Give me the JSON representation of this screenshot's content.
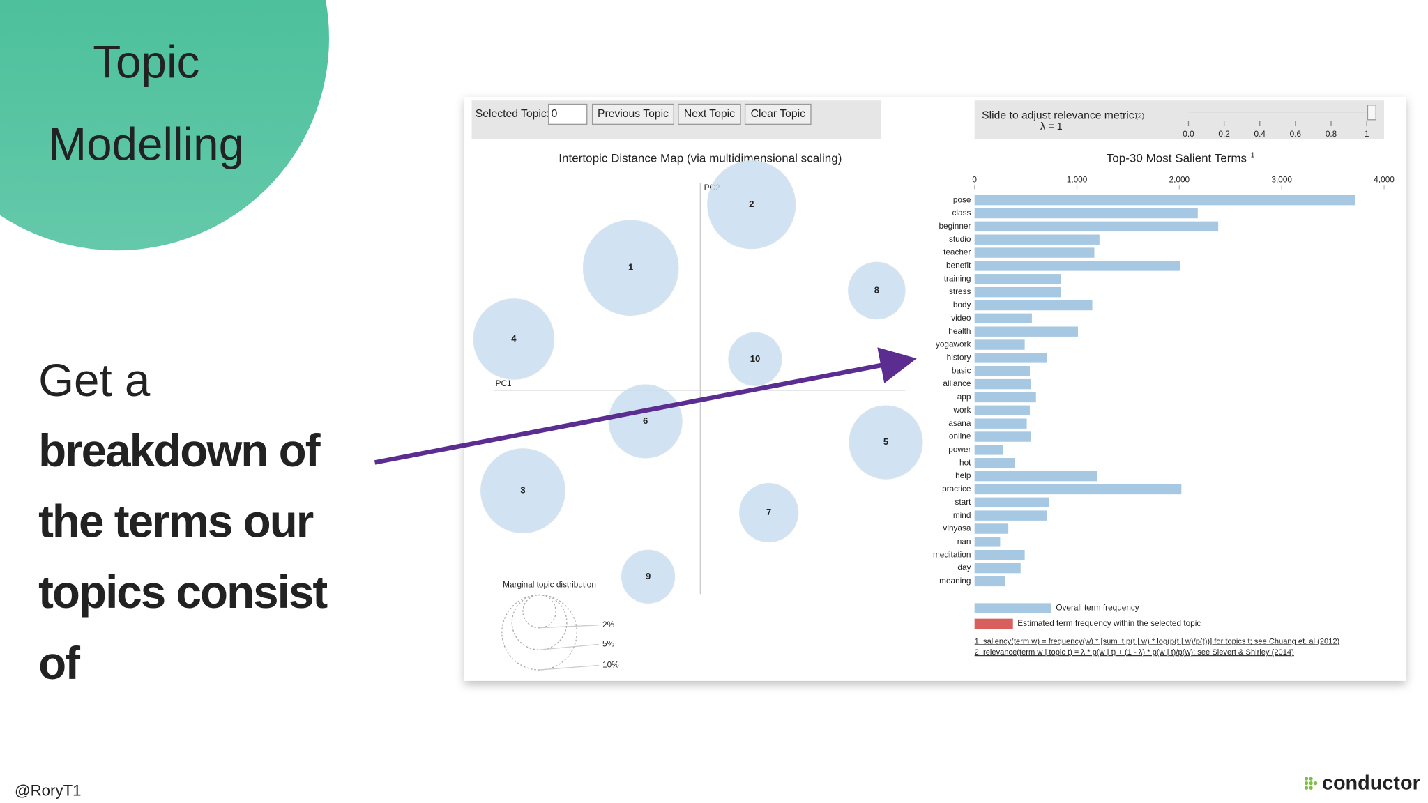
{
  "slide": {
    "title_lines": [
      "Topic",
      "Modelling"
    ],
    "body_regular": "Get a",
    "body_bold": [
      "breakdown of",
      "the terms our",
      "topics consist",
      "of"
    ],
    "handle": "@RoryT1",
    "logo": "conductor"
  },
  "controls": {
    "selected_label": "Selected Topic:",
    "selected_value": "0",
    "buttons": [
      "Previous Topic",
      "Next Topic",
      "Clear Topic"
    ],
    "slider_label": "Slide to adjust relevance metric:",
    "slider_note": "(2)",
    "lambda_text": "λ = 1",
    "slider_ticks": [
      {
        "value": 0,
        "label": "0.0"
      },
      {
        "value": 0.2,
        "label": "0.2"
      },
      {
        "value": 0.4,
        "label": "0.4"
      },
      {
        "value": 0.6,
        "label": "0.6"
      },
      {
        "value": 0.8,
        "label": "0.8"
      },
      1
    ],
    "slider_lim": [
      0,
      1
    ]
  },
  "topic_map": {
    "title": "Intertopic Distance Map (via multidimensional scaling)",
    "x_axis": "PC1",
    "y_axis": "PC2",
    "topics": [
      "2",
      "1",
      "8",
      "4",
      "10",
      "6",
      "5",
      "3",
      "7",
      "9"
    ],
    "marginal_title": "Marginal topic distribution",
    "marginal_labels": [
      "2%",
      "5%",
      "10%"
    ]
  },
  "chart_data": {
    "type": "hbar",
    "title": "Top-30 Most Salient Terms",
    "title_sup": "1",
    "categories": [
      "pose",
      "class",
      "beginner",
      "studio",
      "teacher",
      "benefit",
      "training",
      "stress",
      "body",
      "video",
      "health",
      "yogawork",
      "history",
      "basic",
      "alliance",
      "app",
      "work",
      "asana",
      "online",
      "power",
      "hot",
      "help",
      "practice",
      "start",
      "mind",
      "vinyasa",
      "nan",
      "meditation",
      "day",
      "meaning"
    ],
    "values": [
      3720,
      2180,
      2380,
      1220,
      1170,
      2010,
      840,
      840,
      1150,
      560,
      1010,
      490,
      710,
      540,
      550,
      600,
      540,
      510,
      550,
      280,
      390,
      1200,
      2020,
      730,
      710,
      330,
      250,
      490,
      450,
      300
    ],
    "color": "#a6c8e2",
    "xlim": [
      0,
      4000
    ],
    "xticks": [
      0,
      {
        "value": 1000,
        "label": "1,000"
      },
      {
        "value": 2000,
        "label": "2,000"
      },
      {
        "value": 3000,
        "label": "3,000"
      },
      {
        "value": 4000,
        "label": "4,000"
      }
    ],
    "legend": [
      {
        "name": "Overall term frequency",
        "color": "#a6c8e2"
      },
      {
        "name": "Estimated term frequency within the selected topic",
        "color": "#d95f5f"
      }
    ],
    "footnotes": [
      "1. saliency(term w) = frequency(w) * [sum_t p(t | w) * log(p(t | w)/p(t))] for topics t; see Chuang et. al (2012)",
      "2. relevance(term w | topic t) = λ * p(w | t) + (1 - λ) * p(w | t)/p(w); see Sievert & Shirley (2014)"
    ]
  }
}
